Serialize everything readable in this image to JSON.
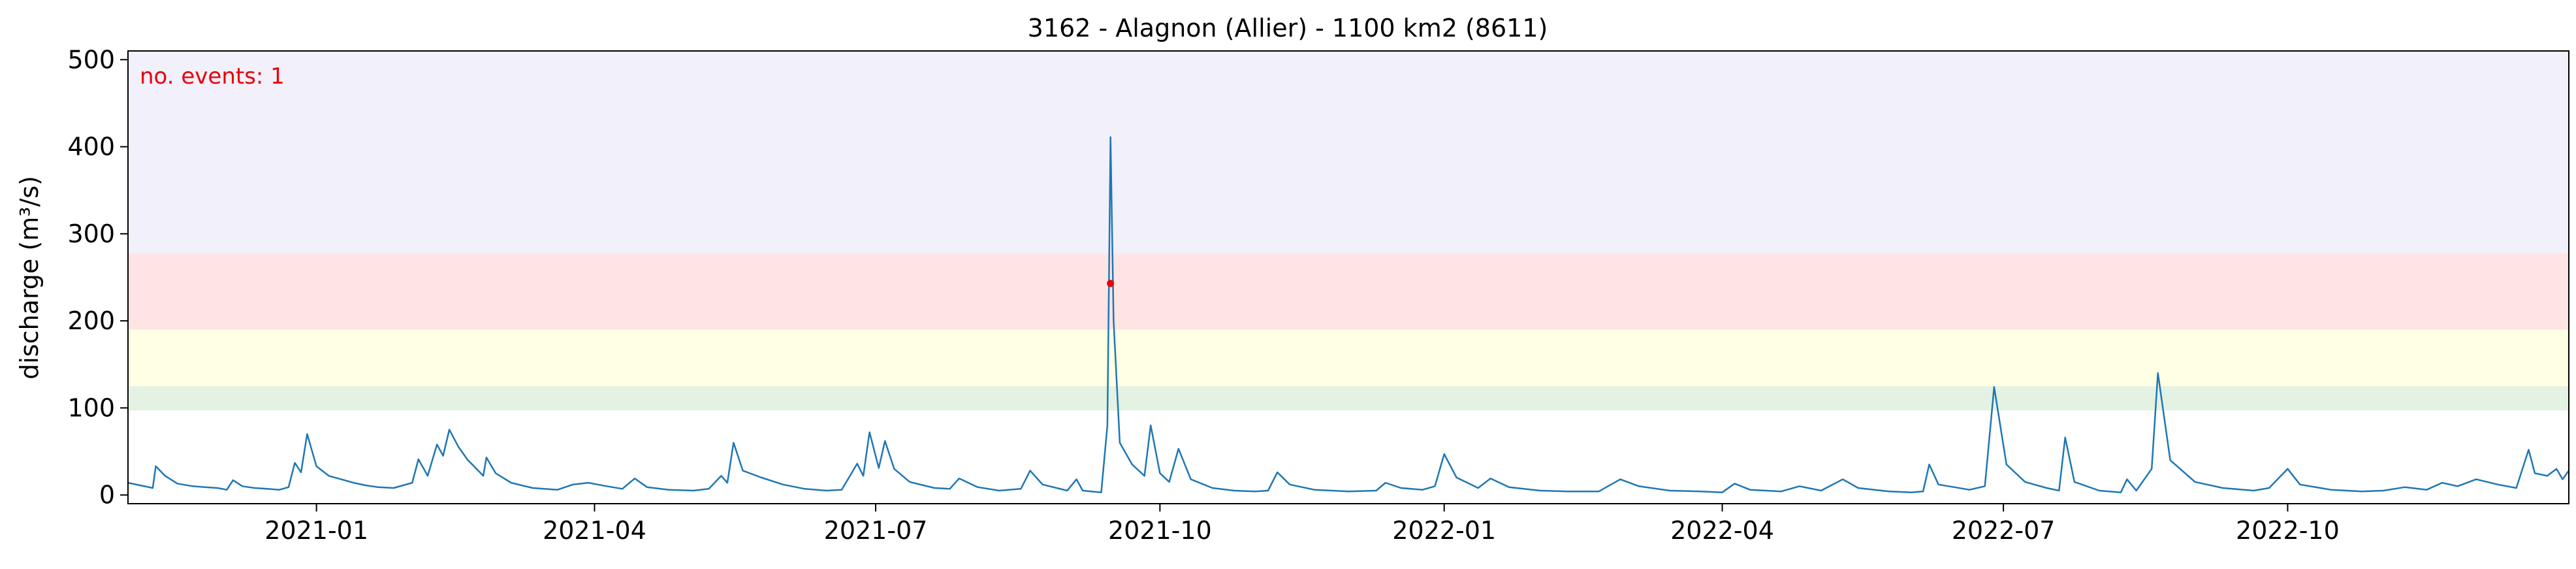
{
  "chart_data": {
    "type": "line",
    "title": "3162 - Alagnon (Allier) - 1100 km2 (8611)",
    "xlabel": "",
    "ylabel": "discharge (m³/s)",
    "xlim": [
      "2020-11-01",
      "2022-12-31"
    ],
    "ylim": [
      -10,
      510
    ],
    "yticks": [
      0,
      100,
      200,
      300,
      400,
      500
    ],
    "xticks": [
      {
        "date": "2021-01-01",
        "label": "2021-01"
      },
      {
        "date": "2021-04-01",
        "label": "2021-04"
      },
      {
        "date": "2021-07-01",
        "label": "2021-07"
      },
      {
        "date": "2021-10-01",
        "label": "2021-10"
      },
      {
        "date": "2022-01-01",
        "label": "2022-01"
      },
      {
        "date": "2022-04-01",
        "label": "2022-04"
      },
      {
        "date": "2022-07-01",
        "label": "2022-07"
      },
      {
        "date": "2022-10-01",
        "label": "2022-10"
      }
    ],
    "grid": false,
    "bands": [
      {
        "from": 97,
        "to": 125,
        "color": "#e4f2e4"
      },
      {
        "from": 125,
        "to": 190,
        "color": "#ffffe4"
      },
      {
        "from": 190,
        "to": 277,
        "color": "#ffe4e4"
      },
      {
        "from": 277,
        "to": 510,
        "color": "#f2f0fa"
      }
    ],
    "annotation": {
      "text": "no. events: 1",
      "color": "#e8000b"
    },
    "events": [
      {
        "date": "2021-09-15",
        "value": 243
      }
    ],
    "series": [
      {
        "color": "#1f77b4",
        "points": [
          [
            "2020-11-01",
            14
          ],
          [
            "2020-11-05",
            11
          ],
          [
            "2020-11-09",
            8
          ],
          [
            "2020-11-10",
            33
          ],
          [
            "2020-11-13",
            22
          ],
          [
            "2020-11-17",
            13
          ],
          [
            "2020-11-22",
            10
          ],
          [
            "2020-11-26",
            9
          ],
          [
            "2020-11-30",
            8
          ],
          [
            "2020-12-03",
            6
          ],
          [
            "2020-12-05",
            17
          ],
          [
            "2020-12-08",
            10
          ],
          [
            "2020-12-12",
            8
          ],
          [
            "2020-12-16",
            7
          ],
          [
            "2020-12-20",
            6
          ],
          [
            "2020-12-23",
            9
          ],
          [
            "2020-12-25",
            37
          ],
          [
            "2020-12-27",
            26
          ],
          [
            "2020-12-29",
            70
          ],
          [
            "2021-01-01",
            33
          ],
          [
            "2021-01-05",
            22
          ],
          [
            "2021-01-09",
            18
          ],
          [
            "2021-01-13",
            14
          ],
          [
            "2021-01-17",
            11
          ],
          [
            "2021-01-21",
            9
          ],
          [
            "2021-01-26",
            8
          ],
          [
            "2021-02-01",
            14
          ],
          [
            "2021-02-03",
            41
          ],
          [
            "2021-02-06",
            22
          ],
          [
            "2021-02-09",
            58
          ],
          [
            "2021-02-11",
            45
          ],
          [
            "2021-02-13",
            75
          ],
          [
            "2021-02-16",
            55
          ],
          [
            "2021-02-19",
            40
          ],
          [
            "2021-02-21",
            33
          ],
          [
            "2021-02-24",
            22
          ],
          [
            "2021-02-25",
            43
          ],
          [
            "2021-02-28",
            25
          ],
          [
            "2021-03-05",
            14
          ],
          [
            "2021-03-12",
            8
          ],
          [
            "2021-03-20",
            6
          ],
          [
            "2021-03-25",
            12
          ],
          [
            "2021-03-30",
            14
          ],
          [
            "2021-04-05",
            10
          ],
          [
            "2021-04-10",
            7
          ],
          [
            "2021-04-14",
            19
          ],
          [
            "2021-04-18",
            9
          ],
          [
            "2021-04-25",
            6
          ],
          [
            "2021-05-03",
            5
          ],
          [
            "2021-05-08",
            7
          ],
          [
            "2021-05-12",
            22
          ],
          [
            "2021-05-14",
            14
          ],
          [
            "2021-05-16",
            60
          ],
          [
            "2021-05-19",
            28
          ],
          [
            "2021-05-25",
            20
          ],
          [
            "2021-06-01",
            12
          ],
          [
            "2021-06-08",
            7
          ],
          [
            "2021-06-15",
            5
          ],
          [
            "2021-06-20",
            6
          ],
          [
            "2021-06-25",
            36
          ],
          [
            "2021-06-27",
            22
          ],
          [
            "2021-06-29",
            72
          ],
          [
            "2021-07-02",
            31
          ],
          [
            "2021-07-04",
            62
          ],
          [
            "2021-07-07",
            30
          ],
          [
            "2021-07-12",
            15
          ],
          [
            "2021-07-20",
            8
          ],
          [
            "2021-07-25",
            7
          ],
          [
            "2021-07-28",
            19
          ],
          [
            "2021-08-03",
            9
          ],
          [
            "2021-08-10",
            5
          ],
          [
            "2021-08-17",
            7
          ],
          [
            "2021-08-20",
            28
          ],
          [
            "2021-08-24",
            12
          ],
          [
            "2021-09-01",
            5
          ],
          [
            "2021-09-04",
            18
          ],
          [
            "2021-09-06",
            5
          ],
          [
            "2021-09-12",
            3
          ],
          [
            "2021-09-14",
            80
          ],
          [
            "2021-09-15",
            411
          ],
          [
            "2021-09-16",
            200
          ],
          [
            "2021-09-18",
            60
          ],
          [
            "2021-09-22",
            35
          ],
          [
            "2021-09-26",
            22
          ],
          [
            "2021-09-28",
            80
          ],
          [
            "2021-10-01",
            25
          ],
          [
            "2021-10-04",
            15
          ],
          [
            "2021-10-07",
            53
          ],
          [
            "2021-10-11",
            18
          ],
          [
            "2021-10-18",
            8
          ],
          [
            "2021-10-25",
            5
          ],
          [
            "2021-11-01",
            4
          ],
          [
            "2021-11-05",
            5
          ],
          [
            "2021-11-08",
            26
          ],
          [
            "2021-11-12",
            12
          ],
          [
            "2021-11-20",
            6
          ],
          [
            "2021-12-01",
            4
          ],
          [
            "2021-12-10",
            5
          ],
          [
            "2021-12-13",
            14
          ],
          [
            "2021-12-18",
            8
          ],
          [
            "2021-12-25",
            6
          ],
          [
            "2021-12-29",
            10
          ],
          [
            "2022-01-01",
            47
          ],
          [
            "2022-01-05",
            20
          ],
          [
            "2022-01-12",
            8
          ],
          [
            "2022-01-16",
            19
          ],
          [
            "2022-01-22",
            9
          ],
          [
            "2022-02-01",
            5
          ],
          [
            "2022-02-10",
            4
          ],
          [
            "2022-02-20",
            4
          ],
          [
            "2022-02-27",
            18
          ],
          [
            "2022-03-05",
            10
          ],
          [
            "2022-03-15",
            5
          ],
          [
            "2022-03-25",
            4
          ],
          [
            "2022-04-01",
            3
          ],
          [
            "2022-04-05",
            13
          ],
          [
            "2022-04-10",
            6
          ],
          [
            "2022-04-20",
            4
          ],
          [
            "2022-04-26",
            10
          ],
          [
            "2022-05-03",
            5
          ],
          [
            "2022-05-10",
            18
          ],
          [
            "2022-05-15",
            8
          ],
          [
            "2022-05-25",
            4
          ],
          [
            "2022-06-01",
            3
          ],
          [
            "2022-06-05",
            4
          ],
          [
            "2022-06-07",
            35
          ],
          [
            "2022-06-10",
            12
          ],
          [
            "2022-06-20",
            6
          ],
          [
            "2022-06-25",
            10
          ],
          [
            "2022-06-28",
            124
          ],
          [
            "2022-07-02",
            35
          ],
          [
            "2022-07-08",
            15
          ],
          [
            "2022-07-15",
            8
          ],
          [
            "2022-07-19",
            5
          ],
          [
            "2022-07-21",
            66
          ],
          [
            "2022-07-24",
            15
          ],
          [
            "2022-08-01",
            5
          ],
          [
            "2022-08-08",
            3
          ],
          [
            "2022-08-10",
            18
          ],
          [
            "2022-08-13",
            5
          ],
          [
            "2022-08-18",
            30
          ],
          [
            "2022-08-20",
            140
          ],
          [
            "2022-08-24",
            40
          ],
          [
            "2022-09-01",
            15
          ],
          [
            "2022-09-10",
            8
          ],
          [
            "2022-09-20",
            5
          ],
          [
            "2022-09-25",
            8
          ],
          [
            "2022-10-01",
            30
          ],
          [
            "2022-10-05",
            12
          ],
          [
            "2022-10-15",
            6
          ],
          [
            "2022-10-25",
            4
          ],
          [
            "2022-11-01",
            5
          ],
          [
            "2022-11-08",
            9
          ],
          [
            "2022-11-15",
            6
          ],
          [
            "2022-11-20",
            14
          ],
          [
            "2022-11-25",
            10
          ],
          [
            "2022-12-01",
            18
          ],
          [
            "2022-12-08",
            12
          ],
          [
            "2022-12-14",
            8
          ],
          [
            "2022-12-18",
            52
          ],
          [
            "2022-12-20",
            25
          ],
          [
            "2022-12-24",
            22
          ],
          [
            "2022-12-27",
            30
          ],
          [
            "2022-12-29",
            18
          ],
          [
            "2022-12-31",
            28
          ]
        ]
      }
    ]
  }
}
